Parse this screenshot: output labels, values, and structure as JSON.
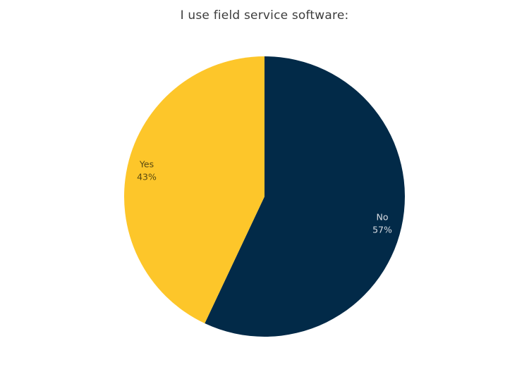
{
  "chart_data": {
    "type": "pie",
    "title": "I use field service software:",
    "categories": [
      "No",
      "Yes"
    ],
    "values": [
      57,
      43
    ],
    "labels": [
      "57%",
      "43%"
    ],
    "colors": [
      "#022a48",
      "#fdc62a"
    ],
    "label_colors": [
      "#d9dde3",
      "#5a4a10"
    ],
    "start_angle": "12 o'clock",
    "direction": "clockwise",
    "legend": "none"
  }
}
